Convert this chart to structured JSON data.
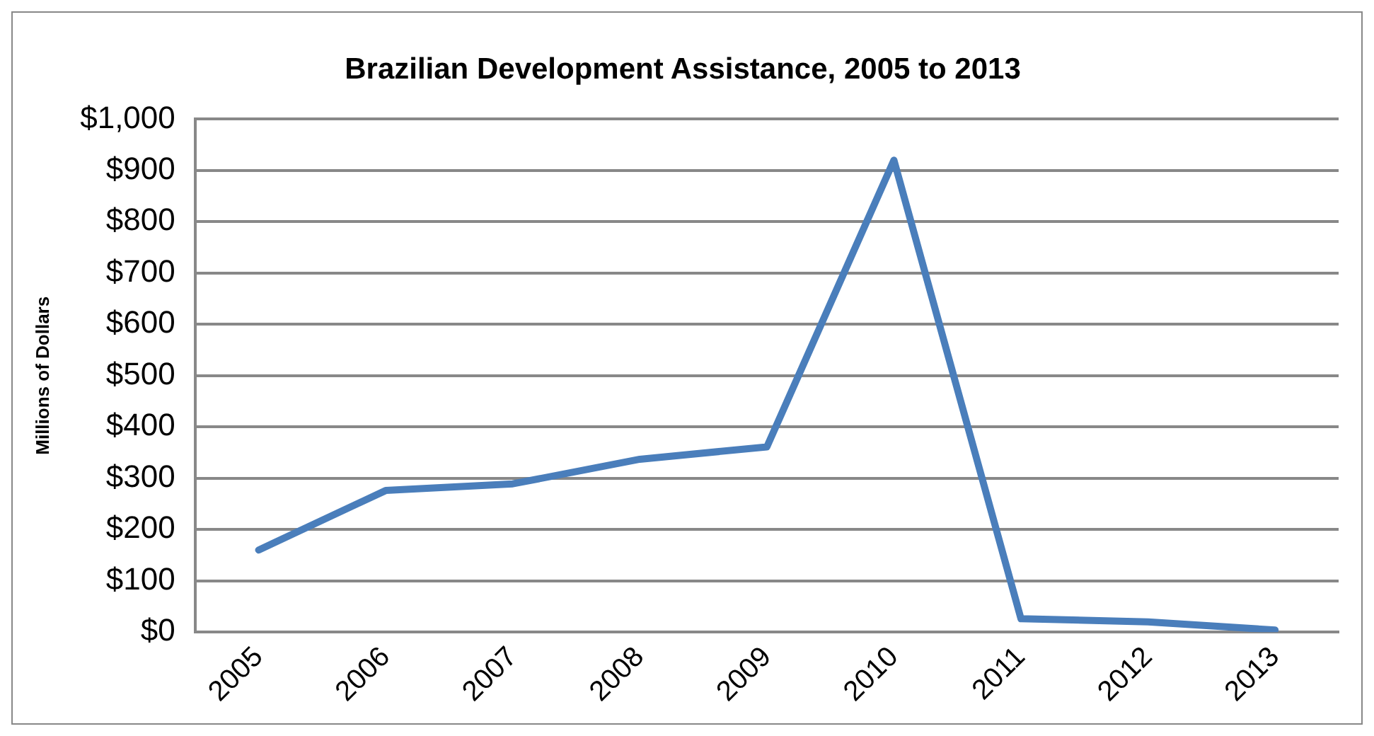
{
  "chart_data": {
    "type": "line",
    "title": "Brazilian Development Assistance, 2005 to 2013",
    "ylabel": "Millions of Dollars",
    "categories": [
      "2005",
      "2006",
      "2007",
      "2008",
      "2009",
      "2010",
      "2011",
      "2012",
      "2013"
    ],
    "series": [
      {
        "color": "#4a7ebb",
        "values": [
          160,
          276,
          289,
          337,
          361,
          920,
          26,
          20,
          4
        ]
      }
    ],
    "ylim": [
      0,
      1000
    ],
    "yticks": [
      {
        "value": 0,
        "label": "$0"
      },
      {
        "value": 100,
        "label": "$100"
      },
      {
        "value": 200,
        "label": "$200"
      },
      {
        "value": 300,
        "label": "$300"
      },
      {
        "value": 400,
        "label": "$400"
      },
      {
        "value": 500,
        "label": "$500"
      },
      {
        "value": 600,
        "label": "$600"
      },
      {
        "value": 700,
        "label": "$700"
      },
      {
        "value": 800,
        "label": "$800"
      },
      {
        "value": 900,
        "label": "$900"
      },
      {
        "value": 1000,
        "label": "$1,000"
      }
    ],
    "grid": "y",
    "legend": false,
    "marker": "none",
    "line_style": "solid"
  }
}
